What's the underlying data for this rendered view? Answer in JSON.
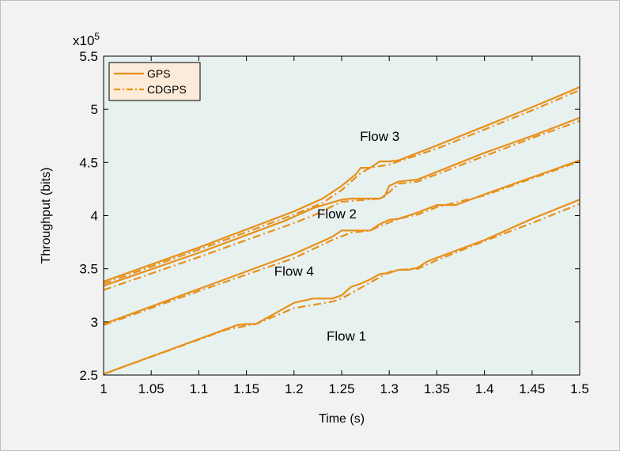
{
  "chart_data": {
    "type": "line",
    "title": "",
    "xlabel": "Time (s)",
    "ylabel": "Throughput (bits)",
    "y_multiplier_label": "x10",
    "y_multiplier_exp": "5",
    "xlim": [
      1,
      1.5
    ],
    "ylim": [
      2.5,
      5.5
    ],
    "grid": false,
    "legend_position": "top-left",
    "x_ticks": [
      "1",
      "1.05",
      "1.1",
      "1.15",
      "1.2",
      "1.25",
      "1.3",
      "1.35",
      "1.4",
      "1.45",
      "1.5"
    ],
    "y_ticks": [
      "2.5",
      "3",
      "3.5",
      "4",
      "4.5",
      "5",
      "5.5"
    ],
    "colors": {
      "series": "#e8901a",
      "plot_background": "#e7f1f0",
      "figure_background": "#f2f2f2"
    },
    "legend": [
      {
        "label": "GPS",
        "style": "solid"
      },
      {
        "label": "CDGPS",
        "style": "dashdot"
      }
    ],
    "annotations": [
      {
        "text": "Flow 3",
        "x": 1.29,
        "y": 4.75
      },
      {
        "text": "Flow 2",
        "x": 1.245,
        "y": 4.02
      },
      {
        "text": "Flow 4",
        "x": 1.2,
        "y": 3.48
      },
      {
        "text": "Flow 1",
        "x": 1.255,
        "y": 2.87
      }
    ],
    "series": [
      {
        "name": "Flow 3 GPS",
        "style": "solid",
        "x": [
          1,
          1.1,
          1.2,
          1.23,
          1.25,
          1.265,
          1.27,
          1.28,
          1.285,
          1.29,
          1.3,
          1.31,
          1.35,
          1.4,
          1.45,
          1.49,
          1.5
        ],
        "y": [
          3.38,
          3.7,
          4.04,
          4.16,
          4.28,
          4.39,
          4.45,
          4.45,
          4.48,
          4.51,
          4.51,
          4.52,
          4.66,
          4.84,
          5.02,
          5.17,
          5.21
        ]
      },
      {
        "name": "Flow 3 CDGPS",
        "style": "dashdot",
        "x": [
          1,
          1.1,
          1.2,
          1.23,
          1.25,
          1.27,
          1.28,
          1.3,
          1.31,
          1.35,
          1.4,
          1.45,
          1.5
        ],
        "y": [
          3.36,
          3.68,
          4.01,
          4.12,
          4.24,
          4.4,
          4.45,
          4.48,
          4.51,
          4.63,
          4.81,
          4.99,
          5.18
        ]
      },
      {
        "name": "Flow 2 GPS",
        "style": "solid",
        "x": [
          1,
          1.1,
          1.19,
          1.22,
          1.25,
          1.26,
          1.29,
          1.295,
          1.3,
          1.31,
          1.33,
          1.4,
          1.45,
          1.5
        ],
        "y": [
          3.34,
          3.65,
          3.95,
          4.07,
          4.15,
          4.16,
          4.16,
          4.18,
          4.28,
          4.32,
          4.34,
          4.59,
          4.75,
          4.92
        ]
      },
      {
        "name": "Flow 2 CDGPS",
        "style": "dashdot",
        "x": [
          1,
          1.1,
          1.2,
          1.22,
          1.25,
          1.29,
          1.3,
          1.31,
          1.33,
          1.4,
          1.45,
          1.5
        ],
        "y": [
          3.3,
          3.61,
          3.93,
          4.0,
          4.13,
          4.16,
          4.22,
          4.3,
          4.32,
          4.56,
          4.73,
          4.89
        ]
      },
      {
        "name": "Flow 4 GPS",
        "style": "solid",
        "x": [
          1,
          1.1,
          1.2,
          1.24,
          1.25,
          1.28,
          1.29,
          1.3,
          1.31,
          1.33,
          1.35,
          1.37,
          1.4,
          1.45,
          1.5
        ],
        "y": [
          2.98,
          3.31,
          3.64,
          3.8,
          3.86,
          3.86,
          3.92,
          3.96,
          3.97,
          4.03,
          4.1,
          4.1,
          4.2,
          4.36,
          4.52
        ]
      },
      {
        "name": "Flow 4 CDGPS",
        "style": "dashdot",
        "x": [
          1,
          1.1,
          1.2,
          1.24,
          1.26,
          1.28,
          1.29,
          1.31,
          1.33,
          1.35,
          1.4,
          1.45,
          1.5
        ],
        "y": [
          2.97,
          3.29,
          3.6,
          3.77,
          3.84,
          3.86,
          3.9,
          3.97,
          4.01,
          4.08,
          4.19,
          4.35,
          4.51
        ]
      },
      {
        "name": "Flow 1 GPS",
        "style": "solid",
        "x": [
          1,
          1.14,
          1.15,
          1.16,
          1.19,
          1.2,
          1.22,
          1.24,
          1.25,
          1.26,
          1.27,
          1.28,
          1.29,
          1.3,
          1.31,
          1.32,
          1.33,
          1.34,
          1.4,
          1.45,
          1.5
        ],
        "y": [
          2.51,
          2.97,
          2.98,
          2.98,
          3.13,
          3.18,
          3.22,
          3.22,
          3.25,
          3.33,
          3.36,
          3.4,
          3.45,
          3.46,
          3.49,
          3.49,
          3.51,
          3.57,
          3.77,
          3.97,
          4.15
        ]
      },
      {
        "name": "Flow 1 CDGPS",
        "style": "dashdot",
        "x": [
          1,
          1.13,
          1.16,
          1.2,
          1.24,
          1.25,
          1.27,
          1.29,
          1.3,
          1.31,
          1.33,
          1.35,
          1.4,
          1.45,
          1.5
        ],
        "y": [
          2.51,
          2.93,
          2.98,
          3.13,
          3.19,
          3.22,
          3.32,
          3.42,
          3.47,
          3.49,
          3.5,
          3.58,
          3.76,
          3.93,
          4.11
        ]
      }
    ]
  }
}
